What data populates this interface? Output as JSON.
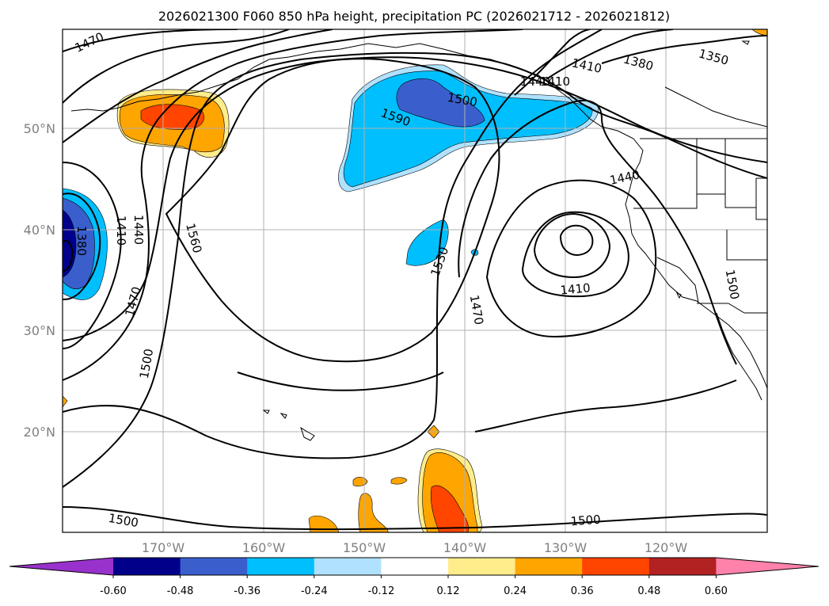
{
  "title": "2026021300 F060 850 hPa height, precipitation PC (2026021712 - 2026021812)",
  "map": {
    "lon_ticks": [
      "170°W",
      "160°W",
      "150°W",
      "140°W",
      "130°W",
      "120°W"
    ],
    "lat_ticks": [
      "50°N",
      "40°N",
      "30°N",
      "20°N"
    ],
    "contour_labels": [
      "1470",
      "1410",
      "1440",
      "1410",
      "1380",
      "1350",
      "1500",
      "1590",
      "1560",
      "1440",
      "1380",
      "1410",
      "1440",
      "1530",
      "1470",
      "1410",
      "1470",
      "1500",
      "1500",
      "1500",
      "1500"
    ],
    "colors": {
      "frame": "#000000",
      "grid": "#b0b0b0",
      "coast": "#000000"
    }
  },
  "colorbar": {
    "levels": [
      "-0.60",
      "-0.48",
      "-0.36",
      "-0.24",
      "-0.12",
      "0.12",
      "0.24",
      "0.36",
      "0.48",
      "0.60"
    ],
    "colors": [
      "#9932cc",
      "#00008b",
      "#3a5fcd",
      "#00bfff",
      "#b0e2ff",
      "#ffffff",
      "#ffec8b",
      "#ffa500",
      "#ff4500",
      "#b22222",
      "#ff82ab"
    ]
  }
}
